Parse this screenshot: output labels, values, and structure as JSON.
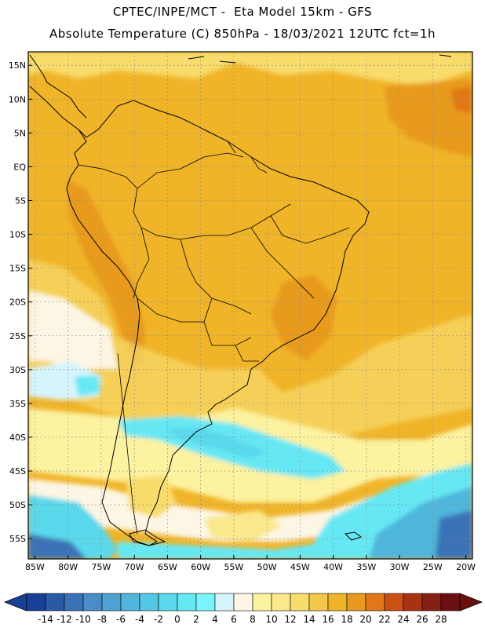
{
  "title_line1": "CPTEC/INPE/MCT -  Eta Model 15km - GFS",
  "title_line2": "Absolute Temperature (C) 850hPa - 18/03/2021 12UTC fct=1h",
  "lat_labels": [
    "15N",
    "10N",
    "5N",
    "EQ",
    "5S",
    "10S",
    "15S",
    "20S",
    "25S",
    "30S",
    "35S",
    "40S",
    "45S",
    "50S",
    "55S"
  ],
  "lon_labels": [
    "85W",
    "80W",
    "75W",
    "70W",
    "65W",
    "60W",
    "55W",
    "50W",
    "45W",
    "40W",
    "35W",
    "30W",
    "25W",
    "20W"
  ],
  "colorbar": {
    "labels": [
      "-14",
      "-12",
      "-10",
      "-8",
      "-6",
      "-4",
      "-2",
      "0",
      "2",
      "4",
      "6",
      "8",
      "10",
      "12",
      "14",
      "16",
      "18",
      "20",
      "22",
      "24",
      "26",
      "28"
    ],
    "colors": [
      "#1a3f96",
      "#2a5aa6",
      "#3a72b6",
      "#4a8cc6",
      "#4ea2d2",
      "#50b6dc",
      "#52c8e4",
      "#5ad8ec",
      "#66e8f4",
      "#7af4fa",
      "#d6f4fc",
      "#fdf6e4",
      "#fcf2a0",
      "#fae88c",
      "#f8dc6c",
      "#f4c84c",
      "#f0b429",
      "#e89a1e",
      "#e07818",
      "#cc5014",
      "#a83212",
      "#862014",
      "#6a1010"
    ]
  },
  "temperature_field_colors": {
    "warm": "#f0b429",
    "hot": "#e89a1e",
    "hotter": "#e07818",
    "mild": "#f8dc6c",
    "light": "#fcf2a0",
    "pale": "#fdf6e4",
    "cold": "#5ad8ec",
    "colder": "#4ea2d2",
    "coldest": "#2a5aa6"
  }
}
